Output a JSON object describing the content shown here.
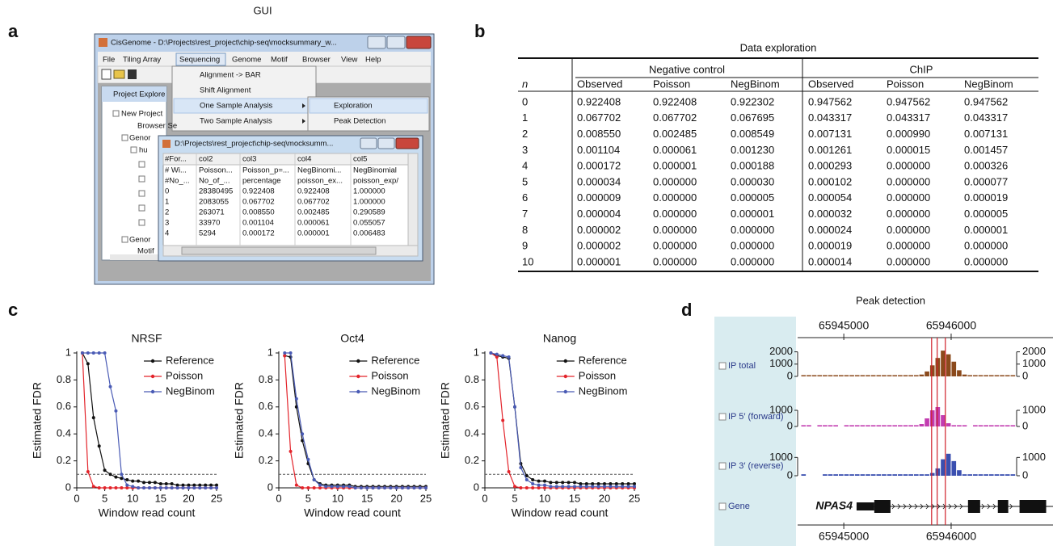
{
  "figure": {
    "letters": [
      "a",
      "b",
      "c",
      "d"
    ]
  },
  "gui": {
    "title": "GUI",
    "window_title": "CisGenome - D:\\Projects\\rest_project\\chip-seq\\mocksummary_w...",
    "menu": [
      "File",
      "Tiling Array",
      "Sequencing",
      "Genome",
      "Motif",
      "Browser",
      "View",
      "Help"
    ],
    "dropdown": [
      "Alignment -> BAR",
      "Shift Alignment",
      "One Sample Analysis",
      "Two Sample Analysis"
    ],
    "submenu": [
      "Exploration",
      "Peak Detection"
    ],
    "explorer_title": "Project Explore",
    "tree": [
      "New Project",
      "Browser Se",
      "Genor",
      "hu",
      "Genor",
      "Motif"
    ],
    "inner_title": "D:\\Projects\\rest_project\\chip-seq\\mocksumm...",
    "inner_table": {
      "header": [
        "#For...",
        "col2",
        "col3",
        "col4",
        "col5"
      ],
      "rows": [
        [
          "# Wi...",
          "Poisson...",
          "Poisson_p=...",
          "NegBinomi...",
          "NegBinomial"
        ],
        [
          "#No_...",
          "No_of_...",
          "percentage",
          "poisson_ex...",
          "poisson_exp/"
        ],
        [
          "0",
          "28380495",
          "0.922408",
          "0.922408",
          "1.000000"
        ],
        [
          "1",
          "2083055",
          "0.067702",
          "0.067702",
          "1.000000"
        ],
        [
          "2",
          "263071",
          "0.008550",
          "0.002485",
          "0.290589"
        ],
        [
          "3",
          "33970",
          "0.001104",
          "0.000061",
          "0.055057"
        ],
        [
          "4",
          "5294",
          "0.000172",
          "0.000001",
          "0.006483"
        ]
      ]
    }
  },
  "table": {
    "title": "Data exploration",
    "groups": [
      "Negative control",
      "ChIP"
    ],
    "index_label": "n",
    "columns": [
      "Observed",
      "Poisson",
      "NegBinom",
      "Observed",
      "Poisson",
      "NegBinom"
    ],
    "rows": [
      [
        "0",
        "0.922408",
        "0.922408",
        "0.922302",
        "0.947562",
        "0.947562",
        "0.947562"
      ],
      [
        "1",
        "0.067702",
        "0.067702",
        "0.067695",
        "0.043317",
        "0.043317",
        "0.043317"
      ],
      [
        "2",
        "0.008550",
        "0.002485",
        "0.008549",
        "0.007131",
        "0.000990",
        "0.007131"
      ],
      [
        "3",
        "0.001104",
        "0.000061",
        "0.001230",
        "0.001261",
        "0.000015",
        "0.001457"
      ],
      [
        "4",
        "0.000172",
        "0.000001",
        "0.000188",
        "0.000293",
        "0.000000",
        "0.000326"
      ],
      [
        "5",
        "0.000034",
        "0.000000",
        "0.000030",
        "0.000102",
        "0.000000",
        "0.000077"
      ],
      [
        "6",
        "0.000009",
        "0.000000",
        "0.000005",
        "0.000054",
        "0.000000",
        "0.000019"
      ],
      [
        "7",
        "0.000004",
        "0.000000",
        "0.000001",
        "0.000032",
        "0.000000",
        "0.000005"
      ],
      [
        "8",
        "0.000002",
        "0.000000",
        "0.000000",
        "0.000024",
        "0.000000",
        "0.000001"
      ],
      [
        "9",
        "0.000002",
        "0.000000",
        "0.000000",
        "0.000019",
        "0.000000",
        "0.000000"
      ],
      [
        "10",
        "0.000001",
        "0.000000",
        "0.000000",
        "0.000014",
        "0.000000",
        "0.000000"
      ]
    ]
  },
  "chart_data": [
    {
      "type": "line",
      "title": "NRSF",
      "xlabel": "Window read count",
      "ylabel": "Estimated FDR",
      "xlim": [
        0,
        25
      ],
      "ylim": [
        0,
        1
      ],
      "xticks": [
        0,
        5,
        10,
        15,
        20,
        25
      ],
      "yticks": [
        0,
        0.2,
        0.4,
        0.6,
        0.8,
        1
      ],
      "reference_line": 0.1,
      "legend": "upper right",
      "x": [
        1,
        2,
        3,
        4,
        5,
        6,
        7,
        8,
        9,
        10,
        11,
        12,
        13,
        14,
        15,
        16,
        17,
        18,
        19,
        20,
        21,
        22,
        23,
        24,
        25
      ],
      "series": [
        {
          "name": "Reference",
          "color": "#111111",
          "values": [
            1.0,
            0.92,
            0.52,
            0.31,
            0.13,
            0.1,
            0.08,
            0.07,
            0.06,
            0.05,
            0.05,
            0.04,
            0.04,
            0.04,
            0.03,
            0.03,
            0.03,
            0.02,
            0.02,
            0.02,
            0.02,
            0.02,
            0.02,
            0.02,
            0.02
          ]
        },
        {
          "name": "Poisson",
          "color": "#e3242b",
          "values": [
            1.0,
            0.12,
            0.01,
            0,
            0,
            0,
            0,
            0,
            0,
            0,
            0,
            0,
            0,
            0,
            0,
            0,
            0,
            0,
            0,
            0,
            0,
            0,
            0,
            0,
            0
          ]
        },
        {
          "name": "NegBinom",
          "color": "#4a5bb5",
          "values": [
            1.0,
            1.0,
            1.0,
            1.0,
            1.0,
            0.75,
            0.57,
            0.1,
            0.02,
            0.01,
            0,
            0,
            0,
            0,
            0,
            0,
            0,
            0,
            0,
            0,
            0,
            0,
            0,
            0,
            0
          ]
        }
      ]
    },
    {
      "type": "line",
      "title": "Oct4",
      "xlabel": "Window read count",
      "ylabel": "Estimated FDR",
      "xlim": [
        0,
        25
      ],
      "ylim": [
        0,
        1
      ],
      "xticks": [
        0,
        5,
        10,
        15,
        20,
        25
      ],
      "yticks": [
        0,
        0.2,
        0.4,
        0.6,
        0.8,
        1
      ],
      "reference_line": 0.1,
      "legend": "upper right",
      "x": [
        1,
        2,
        3,
        4,
        5,
        6,
        7,
        8,
        9,
        10,
        11,
        12,
        13,
        14,
        15,
        16,
        17,
        18,
        19,
        20,
        21,
        22,
        23,
        24,
        25
      ],
      "series": [
        {
          "name": "Reference",
          "color": "#111111",
          "values": [
            0.98,
            0.97,
            0.6,
            0.35,
            0.18,
            0.06,
            0.03,
            0.02,
            0.02,
            0.02,
            0.02,
            0.02,
            0.01,
            0.01,
            0.01,
            0.01,
            0.01,
            0.01,
            0.01,
            0.01,
            0.01,
            0.01,
            0.01,
            0.01,
            0.01
          ]
        },
        {
          "name": "Poisson",
          "color": "#e3242b",
          "values": [
            0.98,
            0.27,
            0.02,
            0,
            0,
            0,
            0,
            0,
            0,
            0,
            0,
            0,
            0,
            0,
            0,
            0,
            0,
            0,
            0,
            0,
            0,
            0,
            0,
            0,
            0
          ]
        },
        {
          "name": "NegBinom",
          "color": "#4a5bb5",
          "values": [
            1.0,
            1.0,
            0.66,
            0.4,
            0.21,
            0.06,
            0.02,
            0.01,
            0.01,
            0.01,
            0.01,
            0.01,
            0,
            0,
            0,
            0,
            0,
            0,
            0,
            0,
            0,
            0,
            0,
            0,
            0
          ]
        }
      ]
    },
    {
      "type": "line",
      "title": "Nanog",
      "xlabel": "Window read count",
      "ylabel": "Estimated FDR",
      "xlim": [
        0,
        25
      ],
      "ylim": [
        0,
        1
      ],
      "xticks": [
        0,
        5,
        10,
        15,
        20,
        25
      ],
      "yticks": [
        0,
        0.2,
        0.4,
        0.6,
        0.8,
        1
      ],
      "reference_line": 0.1,
      "legend": "upper right",
      "x": [
        1,
        2,
        3,
        4,
        5,
        6,
        7,
        8,
        9,
        10,
        11,
        12,
        13,
        14,
        15,
        16,
        17,
        18,
        19,
        20,
        21,
        22,
        23,
        24,
        25
      ],
      "series": [
        {
          "name": "Reference",
          "color": "#111111",
          "values": [
            1.0,
            0.98,
            0.97,
            0.96,
            0.6,
            0.18,
            0.09,
            0.06,
            0.05,
            0.05,
            0.04,
            0.04,
            0.04,
            0.04,
            0.04,
            0.03,
            0.03,
            0.03,
            0.03,
            0.03,
            0.03,
            0.03,
            0.03,
            0.03,
            0.03
          ]
        },
        {
          "name": "Poisson",
          "color": "#e3242b",
          "values": [
            1.0,
            0.97,
            0.5,
            0.12,
            0.01,
            0,
            0,
            0,
            0,
            0,
            0,
            0,
            0,
            0,
            0,
            0,
            0,
            0,
            0,
            0,
            0,
            0,
            0,
            0,
            0
          ]
        },
        {
          "name": "NegBinom",
          "color": "#4a5bb5",
          "values": [
            1.0,
            0.99,
            0.98,
            0.97,
            0.6,
            0.15,
            0.06,
            0.03,
            0.02,
            0.02,
            0.01,
            0.01,
            0.01,
            0.01,
            0.01,
            0.01,
            0.01,
            0.01,
            0.01,
            0.01,
            0.01,
            0.01,
            0.01,
            0.01,
            0.01
          ]
        }
      ]
    },
    {
      "type": "track",
      "title": "Peak detection",
      "xlim": [
        65944570,
        65946610
      ],
      "xticks": [
        65945000,
        65946000
      ],
      "bins": [
        65944600,
        65944650,
        65944700,
        65944750,
        65944800,
        65944850,
        65944900,
        65944950,
        65945000,
        65945050,
        65945100,
        65945150,
        65945200,
        65945250,
        65945300,
        65945350,
        65945400,
        65945450,
        65945500,
        65945550,
        65945600,
        65945650,
        65945700,
        65945750,
        65945800,
        65945850,
        65945900,
        65945950,
        65946000,
        65946050,
        65946100,
        65946150,
        65946200,
        65946250,
        65946300,
        65946350,
        65946400,
        65946450,
        65946500,
        65946550,
        65946600
      ],
      "marker_lines": [
        65945818,
        65945870,
        65945946
      ],
      "tracks": [
        {
          "name": "IP total",
          "color": "#8b4a1c",
          "ylim": [
            0,
            2500
          ],
          "yticks": [
            0,
            1000,
            2000
          ],
          "values": [
            100,
            100,
            100,
            100,
            100,
            100,
            100,
            100,
            100,
            100,
            100,
            100,
            100,
            100,
            100,
            100,
            100,
            100,
            100,
            100,
            100,
            100,
            150,
            400,
            900,
            1500,
            2100,
            1800,
            1200,
            500,
            150,
            100,
            100,
            100,
            100,
            100,
            100,
            100,
            100,
            100
          ]
        },
        {
          "name": "IP 5′ (forward)",
          "color": "#c23cb0",
          "ylim": [
            0,
            1500
          ],
          "yticks": [
            0,
            1000
          ],
          "values": [
            80,
            80,
            null,
            80,
            80,
            80,
            80,
            null,
            80,
            80,
            80,
            80,
            80,
            80,
            80,
            80,
            80,
            80,
            80,
            80,
            80,
            80,
            150,
            500,
            1000,
            1200,
            700,
            200,
            80,
            80,
            80,
            null,
            80,
            80,
            80,
            80,
            80,
            80,
            80,
            80
          ]
        },
        {
          "name": "IP 3′ (reverse)",
          "color": "#3a4fb0",
          "ylim": [
            0,
            1500
          ],
          "yticks": [
            0,
            1000
          ],
          "values": [
            80,
            null,
            null,
            null,
            80,
            80,
            80,
            80,
            80,
            80,
            80,
            80,
            80,
            80,
            80,
            80,
            80,
            80,
            80,
            80,
            80,
            80,
            80,
            80,
            150,
            400,
            900,
            1200,
            800,
            300,
            80,
            80,
            80,
            80,
            80,
            80,
            80,
            80,
            80,
            80
          ]
        }
      ],
      "gene_track": {
        "name": "Gene",
        "gene": "NPAS4",
        "exons": [
          [
            65945119,
            65945284
          ],
          [
            65945284,
            65945435
          ],
          [
            65946157,
            65946270
          ],
          [
            65946435,
            65946532
          ],
          [
            65946637,
            65946885
          ]
        ]
      }
    }
  ]
}
